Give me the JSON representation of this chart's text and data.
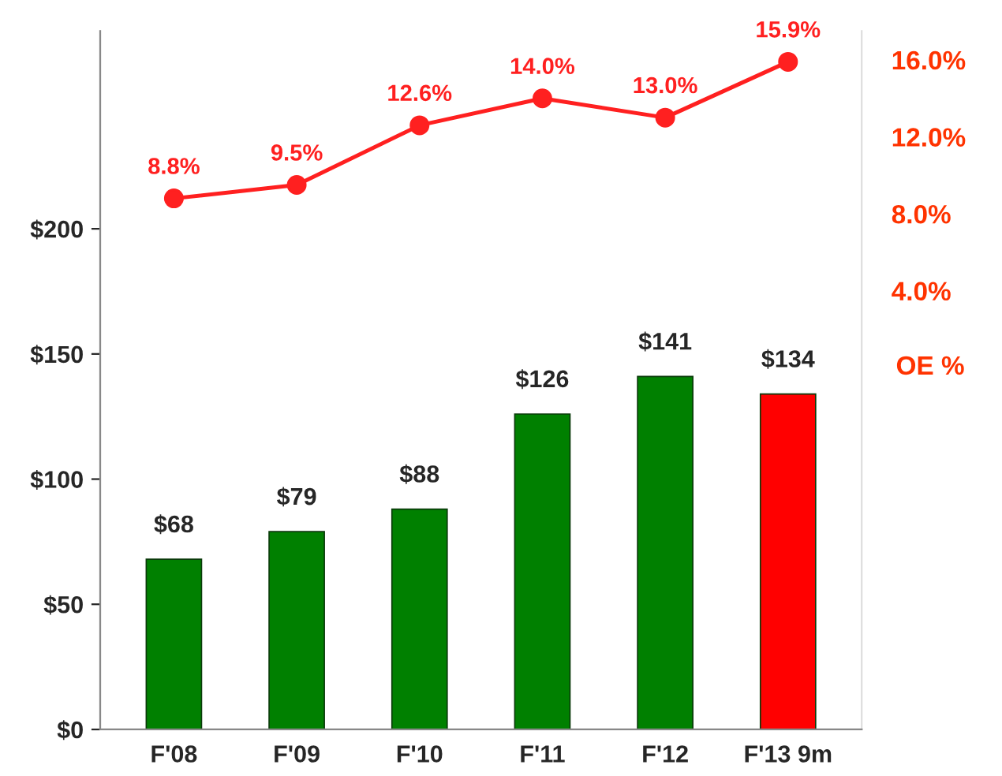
{
  "chart_data": {
    "type": "bar",
    "categories": [
      "F'08",
      "F'09",
      "F'10",
      "F'11",
      "F'12",
      "F'13 9m"
    ],
    "series": [
      {
        "colors": [
          "#008000",
          "#008000",
          "#008000",
          "#008000",
          "#008000",
          "#ff0000"
        ],
        "values": [
          68,
          79,
          88,
          126,
          141,
          134
        ],
        "value_labels": [
          "$68",
          "$79",
          "$88",
          "$126",
          "$141",
          "$134"
        ]
      },
      {
        "type": "line",
        "axis": "y2",
        "color": "#ff2020",
        "marker": "circle",
        "values": [
          8.8,
          9.5,
          12.6,
          14.0,
          13.0,
          15.9
        ],
        "value_labels": [
          "8.8%",
          "9.5%",
          "12.6%",
          "14.0%",
          "13.0%",
          "15.9%"
        ]
      }
    ],
    "ylim": [
      0,
      279
    ],
    "yticks": [
      {
        "value": 0,
        "label": "$0"
      },
      {
        "value": 50,
        "label": "$50"
      },
      {
        "value": 100,
        "label": "$100"
      },
      {
        "value": 150,
        "label": "$150"
      },
      {
        "value": 200,
        "label": "$200"
      }
    ],
    "y2lim": [
      -18.8,
      17.5
    ],
    "y2ticks": [
      {
        "value": 4,
        "label": "4.0%"
      },
      {
        "value": 8,
        "label": "8.0%"
      },
      {
        "value": 12,
        "label": "12.0%"
      },
      {
        "value": 16,
        "label": "16.0%"
      }
    ],
    "y2label": "OE %",
    "grid": false
  }
}
